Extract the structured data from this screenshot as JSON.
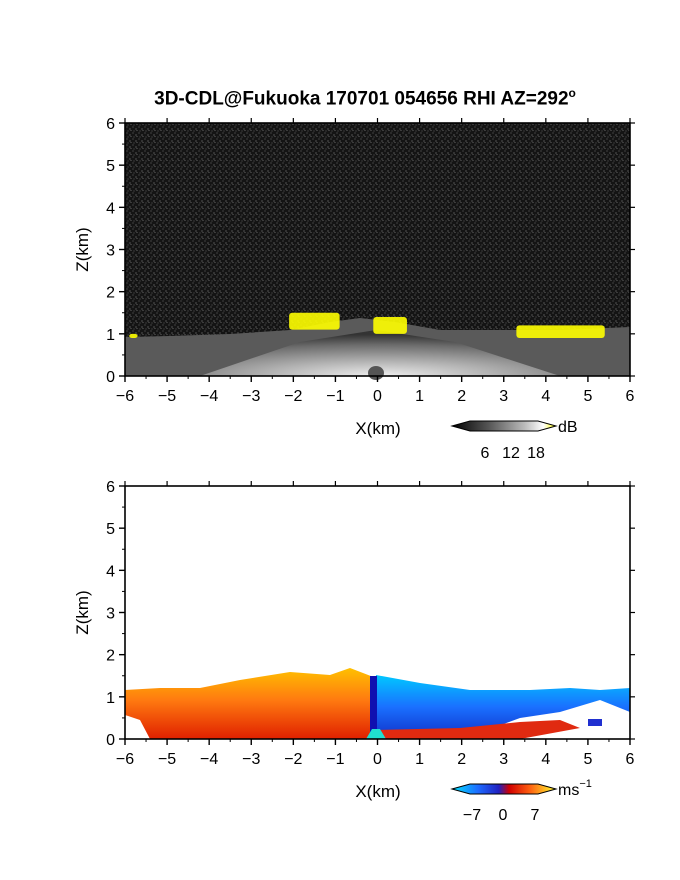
{
  "title": {
    "main": "3D-CDL@Fukuoka 170701 054656 RHI AZ=292",
    "degree": "o"
  },
  "chart_data": [
    {
      "type": "heatmap",
      "panel": "top",
      "quantity": "dB",
      "xlabel": "X(km)",
      "ylabel": "Z(km)",
      "xlim": [
        -6,
        6
      ],
      "ylim": [
        0,
        6
      ],
      "x_ticks": [
        "-6",
        "-5",
        "-4",
        "-3",
        "-2",
        "-1",
        "0",
        "1",
        "2",
        "3",
        "4",
        "5",
        "6"
      ],
      "y_ticks": [
        "0",
        "1",
        "2",
        "3",
        "4",
        "5",
        "6"
      ],
      "colorbar": {
        "unit": "dB",
        "ticks": [
          "6",
          "12",
          "18"
        ],
        "colors": [
          "#000000",
          "#555555",
          "#aaaaaa",
          "#ffffff",
          "#ffff00"
        ]
      },
      "features": {
        "signal_top_km": 1.0,
        "highlight_color": "#ffff00",
        "highlight_bands": [
          {
            "x0": -2.1,
            "x1": -0.9,
            "z0": 1.1,
            "z1": 1.5
          },
          {
            "x0": -0.1,
            "x1": 0.7,
            "z0": 1.0,
            "z1": 1.4
          },
          {
            "x0": 3.3,
            "x1": 5.4,
            "z0": 0.9,
            "z1": 1.2
          },
          {
            "x0": -5.9,
            "x1": -5.7,
            "z0": 0.9,
            "z1": 1.0
          }
        ]
      }
    },
    {
      "type": "heatmap",
      "panel": "bottom",
      "quantity": "Doppler velocity",
      "xlabel": "X(km)",
      "ylabel": "Z(km)",
      "xlim": [
        -6,
        6
      ],
      "ylim": [
        0,
        6
      ],
      "x_ticks": [
        "-6",
        "-5",
        "-4",
        "-3",
        "-2",
        "-1",
        "0",
        "1",
        "2",
        "3",
        "4",
        "5",
        "6"
      ],
      "y_ticks": [
        "0",
        "1",
        "2",
        "3",
        "4",
        "5",
        "6"
      ],
      "colorbar": {
        "unit": "ms",
        "unit_exp": "−1",
        "ticks": [
          "−7",
          "0",
          "7"
        ],
        "colors": [
          "#00e5ff",
          "#1e6bff",
          "#2020c0",
          "#d00000",
          "#ff4010",
          "#ffb000",
          "#ffff30"
        ]
      },
      "features": {
        "negative_side_x": [
          -6,
          0
        ],
        "positive_side_x": [
          0,
          6
        ],
        "max_echo_top_km": 1.7
      }
    }
  ]
}
